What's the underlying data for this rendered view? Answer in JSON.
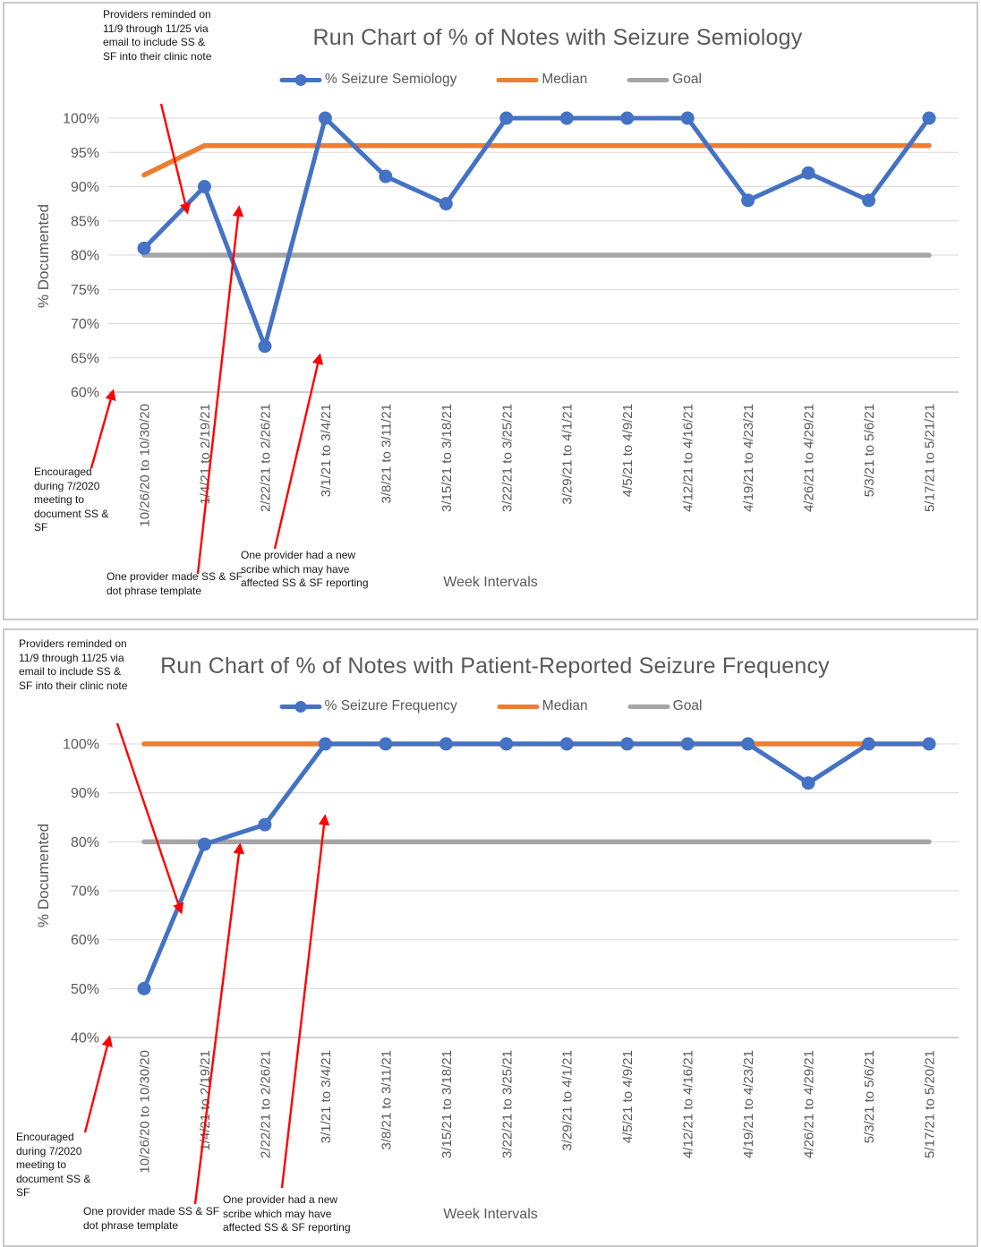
{
  "colors": {
    "series_blue": "#4472C4",
    "median_orange": "#ED7D31",
    "goal_gray": "#A5A5A5",
    "arrow_red": "#FF0000",
    "text_gray": "#595959",
    "grid_gray": "#D9D9D9",
    "axis_line_gray": "#BFBFBF",
    "annotation_text": "#151515",
    "panel_border": "#C9C9C9"
  },
  "chart_data": [
    {
      "type": "line",
      "title": "Run Chart of % of Notes with Seizure Semiology",
      "xlabel": "Week Intervals",
      "ylabel": "% Documented",
      "ylim": [
        60,
        100
      ],
      "ytick_labels": [
        "100%",
        "95%",
        "90%",
        "85%",
        "80%",
        "75%",
        "70%",
        "65%",
        "60%"
      ],
      "grid": true,
      "legend_position": "top-center",
      "categories": [
        "10/26/20 to 10/30/20",
        "1/4/21 to 2/19/21",
        "2/22/21 to 2/26/21",
        "3/1/21 to 3/4/21",
        "3/8/21 to 3/11/21",
        "3/15/21 to 3/18/21",
        "3/22/21 to 3/25/21",
        "3/29/21 to 4/1/21",
        "4/5/21 to 4/9/21",
        "4/12/21 to 4/16/21",
        "4/19/21 to 4/23/21",
        "4/26/21 to 4/29/21",
        "5/3/21 to 5/6/21",
        "5/17/21 to 5/21/21"
      ],
      "series": [
        {
          "name": "% Seizure Semiology",
          "color_key": "series_blue",
          "marker": true,
          "values": [
            81,
            90,
            66.7,
            100,
            91.5,
            87.5,
            100,
            100,
            100,
            100,
            88,
            92,
            88,
            100
          ]
        },
        {
          "name": "Median",
          "color_key": "median_orange",
          "marker": false,
          "values": [
            91.7,
            96,
            96,
            96,
            96,
            96,
            96,
            96,
            96,
            96,
            96,
            96,
            96,
            96
          ]
        },
        {
          "name": "Goal",
          "color_key": "goal_gray",
          "marker": false,
          "values": [
            80,
            80,
            80,
            80,
            80,
            80,
            80,
            80,
            80,
            80,
            80,
            80,
            80,
            80
          ]
        }
      ],
      "annotations": {
        "providers_reminded": "Providers reminded on 11/9 through 11/25 via email to include SS & SF into their clinic note",
        "encouraged": "Encouraged during 7/2020 meeting to document SS & SF",
        "dot_phrase": "One provider made SS & SF dot phrase template",
        "scribe": "One provider had a new scribe which may have affected SS & SF reporting"
      }
    },
    {
      "type": "line",
      "title": "Run Chart of % of Notes with Patient-Reported Seizure Frequency",
      "xlabel": "Week Intervals",
      "ylabel": "% Documented",
      "ylim": [
        40,
        100
      ],
      "ytick_labels": [
        "100%",
        "90%",
        "80%",
        "70%",
        "60%",
        "50%",
        "40%"
      ],
      "grid": true,
      "legend_position": "top-center",
      "categories": [
        "10/26/20 to 10/30/20",
        "1/4/21 to 2/19/21",
        "2/22/21 to 2/26/21",
        "3/1/21 to 3/4/21",
        "3/8/21 to 3/11/21",
        "3/15/21 to 3/18/21",
        "3/22/21 to 3/25/21",
        "3/29/21 to 4/1/21",
        "4/5/21 to 4/9/21",
        "4/12/21 to 4/16/21",
        "4/19/21 to 4/23/21",
        "4/26/21 to 4/29/21",
        "5/3/21 to 5/6/21",
        "5/17/21 to 5/20/21"
      ],
      "series": [
        {
          "name": "% Seizure Frequency",
          "color_key": "series_blue",
          "marker": true,
          "values": [
            50,
            79.5,
            83.5,
            100,
            100,
            100,
            100,
            100,
            100,
            100,
            100,
            92,
            100,
            100
          ]
        },
        {
          "name": "Median",
          "color_key": "median_orange",
          "marker": false,
          "values": [
            100,
            100,
            100,
            100,
            100,
            100,
            100,
            100,
            100,
            100,
            100,
            100,
            100,
            100
          ]
        },
        {
          "name": "Goal",
          "color_key": "goal_gray",
          "marker": false,
          "values": [
            80,
            80,
            80,
            80,
            80,
            80,
            80,
            80,
            80,
            80,
            80,
            80,
            80,
            80
          ]
        }
      ],
      "annotations": {
        "providers_reminded": "Providers reminded on 11/9 through 11/25 via email to include SS & SF into their clinic note",
        "encouraged": "Encouraged during 7/2020 meeting to document SS & SF",
        "dot_phrase": "One provider made SS & SF dot phrase template",
        "scribe": "One provider had a new scribe which may have affected SS & SF reporting"
      }
    }
  ]
}
